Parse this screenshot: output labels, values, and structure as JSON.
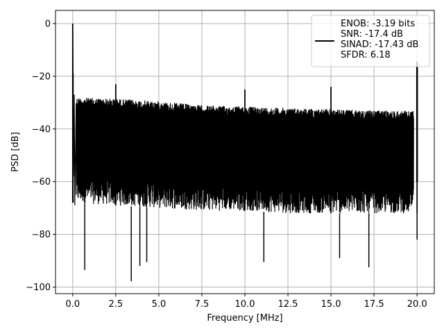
{
  "chart_data": {
    "type": "line",
    "title": "",
    "xlabel": "Frequency [MHz]",
    "ylabel": "PSD [dB]",
    "xlim": [
      -1.0,
      21.0
    ],
    "ylim": [
      -102.5,
      5.0
    ],
    "xticks": [
      0.0,
      2.5,
      5.0,
      7.5,
      10.0,
      12.5,
      15.0,
      17.5,
      20.0
    ],
    "xtick_labels": [
      "0.0",
      "2.5",
      "5.0",
      "7.5",
      "10.0",
      "12.5",
      "15.0",
      "17.5",
      "20.0"
    ],
    "yticks": [
      0,
      -20,
      -40,
      -60,
      -80,
      -100
    ],
    "ytick_labels": [
      "0",
      "−20",
      "−40",
      "−60",
      "−80",
      "−100"
    ],
    "grid": true,
    "legend_position": "top-right",
    "colors": {
      "series": "#000000",
      "grid": "#b0b0b0",
      "legend_border": "#cccccc"
    },
    "legend_lines": [
      "ENOB: -3.19 bits",
      "SNR: -17.4 dB",
      "SINAD: -17.43 dB",
      "SFDR: 6.18"
    ],
    "series": [
      {
        "noise_floor": {
          "x": [
            0.2,
            2.5,
            5.0,
            7.5,
            10.0,
            12.5,
            15.0,
            17.5,
            19.8
          ],
          "upper": [
            -28,
            -28.5,
            -29.5,
            -31,
            -31.5,
            -32,
            -32.5,
            -33,
            -33
          ],
          "lower": [
            -68,
            -69,
            -70,
            -71,
            -71,
            -72,
            -72,
            -72,
            -72
          ]
        },
        "spurs": [
          {
            "x": 0.0,
            "y": 0.0
          },
          {
            "x": 0.02,
            "y": -19.0
          },
          {
            "x": 2.5,
            "y": -23.0
          },
          {
            "x": 10.0,
            "y": -25.0
          },
          {
            "x": 15.0,
            "y": -24.0
          },
          {
            "x": 20.0,
            "y": -14.5
          }
        ],
        "dips": [
          {
            "x": 0.7,
            "y": -93.5
          },
          {
            "x": 3.4,
            "y": -97.8
          },
          {
            "x": 3.9,
            "y": -92.0
          },
          {
            "x": 4.3,
            "y": -90.5
          },
          {
            "x": 11.1,
            "y": -90.5
          },
          {
            "x": 15.5,
            "y": -89.0
          },
          {
            "x": 17.2,
            "y": -92.5
          },
          {
            "x": 20.0,
            "y": -82.0
          }
        ]
      }
    ]
  }
}
